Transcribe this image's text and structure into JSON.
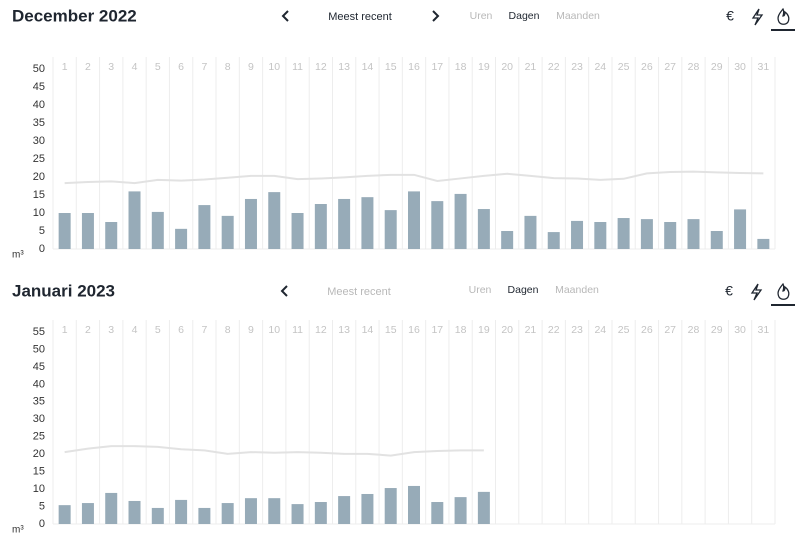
{
  "chart_data": [
    {
      "type": "bar",
      "title": "December 2022",
      "y_label": "m³",
      "categories": [
        "1",
        "2",
        "3",
        "4",
        "5",
        "6",
        "7",
        "8",
        "9",
        "10",
        "11",
        "12",
        "13",
        "14",
        "15",
        "16",
        "17",
        "18",
        "19",
        "20",
        "21",
        "22",
        "23",
        "24",
        "25",
        "26",
        "27",
        "28",
        "29",
        "30",
        "31"
      ],
      "series": [
        {
          "type": "bar",
          "color": "#97abb8",
          "values": [
            10,
            10,
            7.5,
            16,
            10.3,
            5.6,
            12.2,
            9.2,
            13.9,
            15.8,
            10,
            12.5,
            13.9,
            14.4,
            10.8,
            16,
            13.3,
            15.3,
            11.1,
            5,
            9.2,
            4.7,
            7.8,
            7.5,
            8.6,
            8.3,
            7.5,
            8.3,
            5,
            11,
            2.8
          ]
        },
        {
          "type": "line",
          "color": "#e2e2e2",
          "values": [
            18.3,
            18.6,
            18.8,
            18.3,
            19.2,
            19.0,
            19.3,
            19.8,
            20.3,
            20.3,
            19.4,
            19.6,
            19.9,
            20.3,
            20.6,
            20.6,
            18.9,
            19.6,
            20.3,
            20.9,
            20.3,
            19.7,
            19.6,
            19.2,
            19.5,
            21.0,
            21.4,
            21.5,
            21.3,
            21.1,
            21.0
          ]
        }
      ],
      "ylim": [
        0,
        50
      ],
      "yticks": [
        0,
        5,
        10,
        15,
        20,
        25,
        30,
        35,
        40,
        45,
        50
      ],
      "grid": false
    },
    {
      "type": "bar",
      "title": "Januari 2023",
      "y_label": "m³",
      "categories": [
        "1",
        "2",
        "3",
        "4",
        "5",
        "6",
        "7",
        "8",
        "9",
        "10",
        "11",
        "12",
        "13",
        "14",
        "15",
        "16",
        "17",
        "18",
        "19",
        "20",
        "21",
        "22",
        "23",
        "24",
        "25",
        "26",
        "27",
        "28",
        "29",
        "30",
        "31"
      ],
      "series": [
        {
          "type": "bar",
          "color": "#97abb8",
          "values": [
            5.4,
            6,
            8.9,
            6.6,
            4.6,
            6.9,
            4.6,
            6,
            7.4,
            7.4,
            5.7,
            6.3,
            8,
            8.6,
            10.3,
            10.9,
            6.3,
            7.7,
            9.2,
            null,
            null,
            null,
            null,
            null,
            null,
            null,
            null,
            null,
            null,
            null,
            null
          ]
        },
        {
          "type": "line",
          "color": "#e2e2e2",
          "values": [
            20.6,
            21.6,
            22.3,
            22.3,
            22.1,
            21.4,
            21.1,
            20.1,
            20.6,
            20.4,
            20.6,
            20.4,
            20.1,
            20.1,
            19.6,
            20.6,
            20.9,
            21.1,
            21.1,
            null,
            null,
            null,
            null,
            null,
            null,
            null,
            null,
            null,
            null,
            null,
            null
          ]
        }
      ],
      "ylim": [
        0,
        55
      ],
      "yticks": [
        0,
        5,
        10,
        15,
        20,
        25,
        30,
        35,
        40,
        45,
        50,
        55
      ],
      "grid": false
    }
  ],
  "toolbars": [
    {
      "period": "Meest recent",
      "tabs": [
        "Uren",
        "Dagen",
        "Maanden"
      ],
      "currency": "€"
    },
    {
      "period": "Meest recent",
      "tabs": [
        "Uren",
        "Dagen",
        "Maanden"
      ],
      "currency": "€"
    }
  ]
}
